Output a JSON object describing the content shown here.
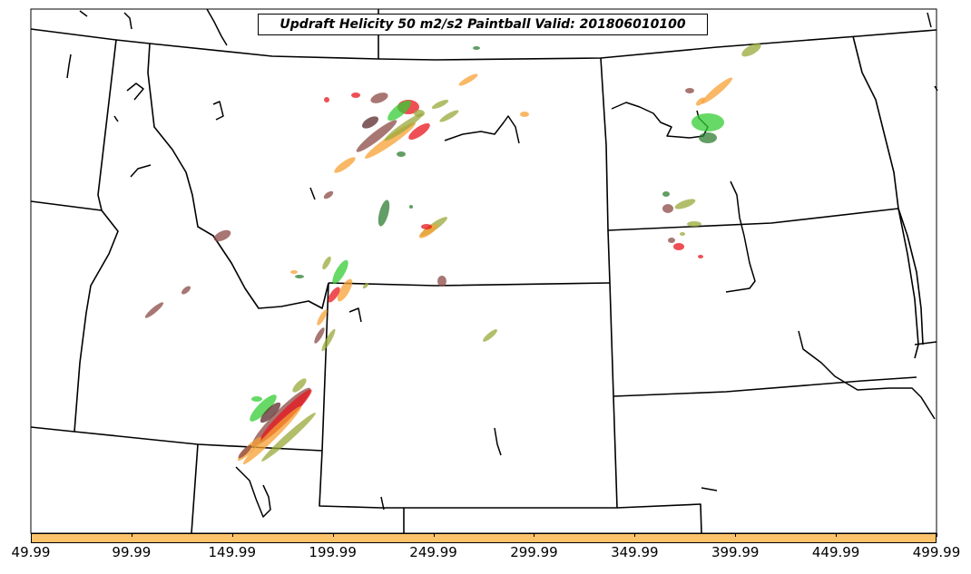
{
  "title": "Updraft Helicity 50 m2/s2 Paintball Valid: 201806010100",
  "colorbar": {
    "color": "#fcc36a",
    "ticks": [
      "49.99",
      "99.99",
      "149.99",
      "199.99",
      "249.99",
      "299.99",
      "349.99",
      "399.99",
      "449.99",
      "499.99"
    ]
  },
  "member_colors": [
    "#e8141c",
    "#33cc33",
    "#f7a033",
    "#8b4a44",
    "#2e7d32",
    "#9aa838",
    "#5a2a2a"
  ]
}
